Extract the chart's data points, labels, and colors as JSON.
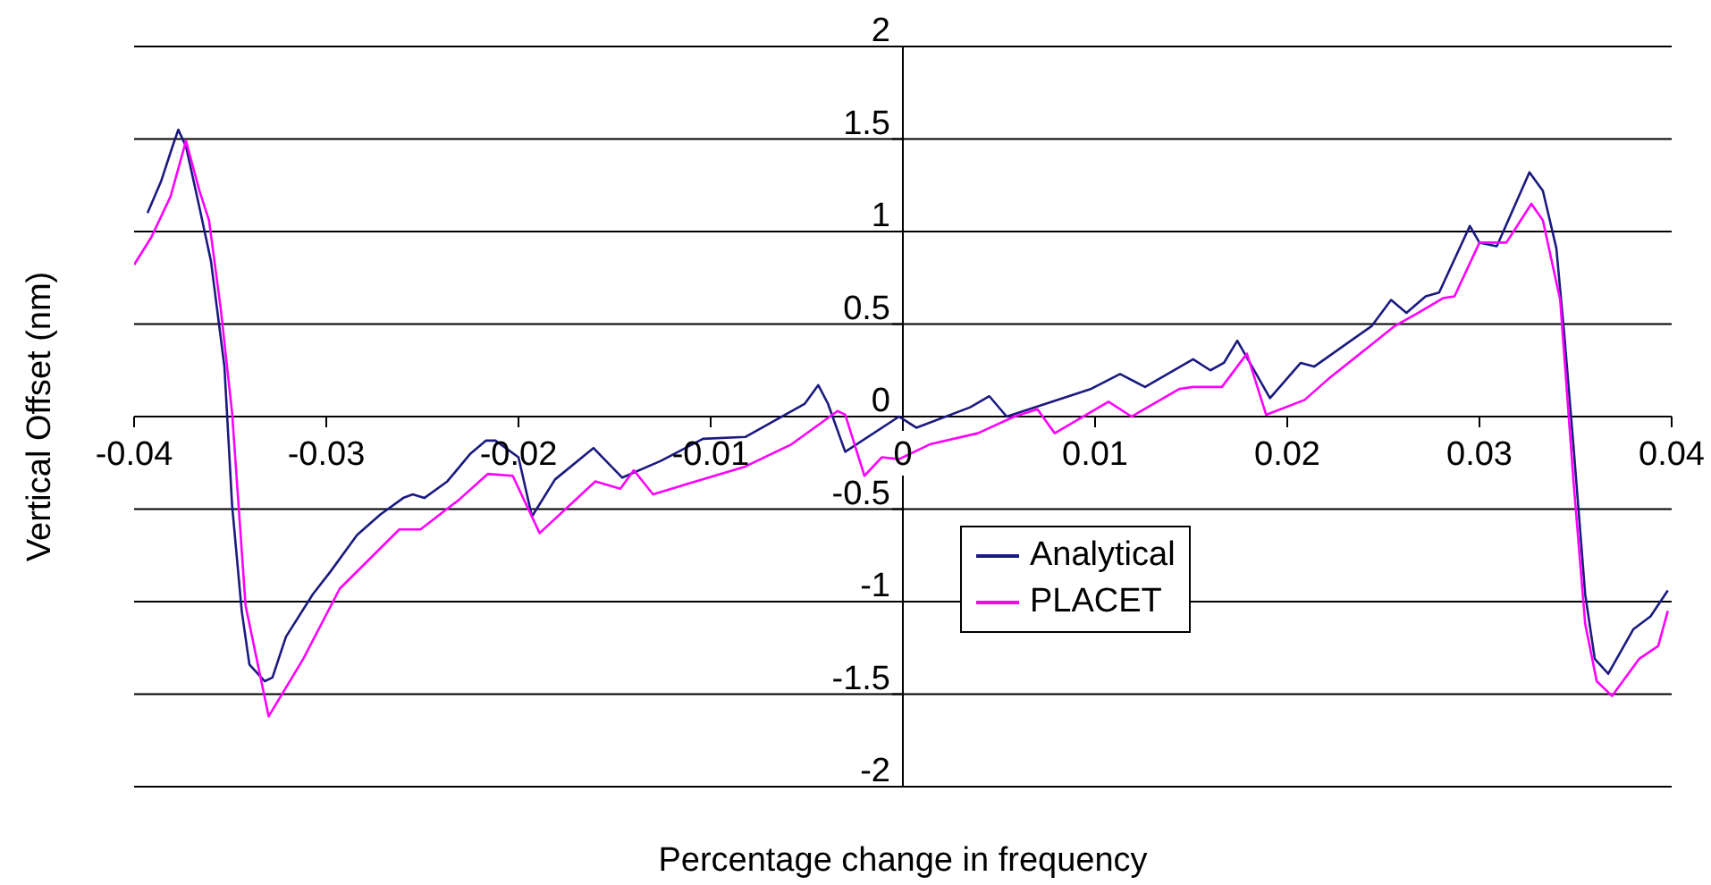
{
  "chart_data": {
    "type": "line",
    "xlabel": "Percentage change in frequency",
    "ylabel": "Vertical Offset (nm)",
    "xlim": [
      -0.04,
      0.04
    ],
    "xticks": [
      -0.04,
      -0.03,
      -0.02,
      -0.01,
      0,
      0.01,
      0.02,
      0.03,
      0.04
    ],
    "ylim": [
      -2,
      2
    ],
    "yticks": [
      -2,
      -1.5,
      -1,
      -0.5,
      0,
      0.5,
      1,
      1.5,
      2
    ],
    "grid": "y",
    "legend": "center",
    "line_style": "solid",
    "marker": "none",
    "series": [
      {
        "name": "Analytical",
        "color": "#1a1a80",
        "x": [
          -0.0393,
          -0.0386,
          -0.038,
          -0.0377,
          -0.0373,
          -0.0366,
          -0.036,
          -0.0353,
          -0.0349,
          -0.0344,
          -0.034,
          -0.0332,
          -0.0328,
          -0.0321,
          -0.0307,
          -0.0298,
          -0.0284,
          -0.0272,
          -0.026,
          -0.0255,
          -0.0249,
          -0.0237,
          -0.0225,
          -0.0217,
          -0.0212,
          -0.02,
          -0.0193,
          -0.0181,
          -0.0161,
          -0.0146,
          -0.0126,
          -0.0104,
          -0.0082,
          -0.0051,
          -0.0044,
          -0.0039,
          -0.003,
          -0.0002,
          0.0007,
          0.0035,
          0.0045,
          0.0054,
          0.0098,
          0.0113,
          0.0126,
          0.0151,
          0.016,
          0.0167,
          0.0174,
          0.0191,
          0.0207,
          0.0214,
          0.0244,
          0.0254,
          0.0262,
          0.0272,
          0.0279,
          0.0295,
          0.03,
          0.0309,
          0.0326,
          0.0333,
          0.034,
          0.0344,
          0.0349,
          0.0355,
          0.036,
          0.0367,
          0.038,
          0.0389,
          0.0398
        ],
        "values": [
          1.1,
          1.27,
          1.46,
          1.55,
          1.46,
          1.13,
          0.84,
          0.27,
          -0.48,
          -1.05,
          -1.34,
          -1.43,
          -1.41,
          -1.19,
          -0.96,
          -0.84,
          -0.64,
          -0.53,
          -0.44,
          -0.42,
          -0.44,
          -0.35,
          -0.2,
          -0.13,
          -0.13,
          -0.22,
          -0.54,
          -0.34,
          -0.17,
          -0.33,
          -0.24,
          -0.12,
          -0.11,
          0.07,
          0.17,
          0.07,
          -0.19,
          0,
          -0.06,
          0.05,
          0.11,
          0,
          0.15,
          0.23,
          0.16,
          0.31,
          0.25,
          0.29,
          0.41,
          0.1,
          0.29,
          0.27,
          0.49,
          0.63,
          0.56,
          0.65,
          0.67,
          1.03,
          0.94,
          0.92,
          1.32,
          1.22,
          0.91,
          0.46,
          -0.17,
          -0.96,
          -1.31,
          -1.39,
          -1.15,
          -1.08,
          -0.94
        ]
      },
      {
        "name": "PLACET",
        "color": "#ff00ff",
        "x": [
          -0.04,
          -0.0391,
          -0.0381,
          -0.0373,
          -0.0366,
          -0.0361,
          -0.0355,
          -0.0349,
          -0.0342,
          -0.033,
          -0.0312,
          -0.0293,
          -0.0262,
          -0.0251,
          -0.0231,
          -0.0216,
          -0.0203,
          -0.0189,
          -0.016,
          -0.0147,
          -0.014,
          -0.013,
          -0.0082,
          -0.0058,
          -0.0042,
          -0.0034,
          -0.003,
          -0.002,
          -0.0011,
          -0.0002,
          0.0014,
          0.0039,
          0.0058,
          0.007,
          0.0079,
          0.0107,
          0.0119,
          0.0144,
          0.0151,
          0.0166,
          0.0179,
          0.0189,
          0.0209,
          0.0221,
          0.0256,
          0.0268,
          0.0281,
          0.0287,
          0.03,
          0.0314,
          0.0327,
          0.0333,
          0.0342,
          0.0349,
          0.0355,
          0.0361,
          0.0369,
          0.0383,
          0.0393,
          0.0398
        ],
        "values": [
          0.82,
          0.97,
          1.19,
          1.49,
          1.22,
          1.06,
          0.59,
          0.02,
          -1.02,
          -1.62,
          -1.31,
          -0.93,
          -0.61,
          -0.61,
          -0.45,
          -0.31,
          -0.32,
          -0.63,
          -0.35,
          -0.39,
          -0.29,
          -0.42,
          -0.27,
          -0.15,
          -0.03,
          0.03,
          0.01,
          -0.32,
          -0.22,
          -0.23,
          -0.15,
          -0.09,
          0,
          0.04,
          -0.09,
          0.08,
          0,
          0.15,
          0.16,
          0.16,
          0.34,
          0.01,
          0.09,
          0.2,
          0.49,
          0.56,
          0.64,
          0.65,
          0.94,
          0.94,
          1.15,
          1.06,
          0.63,
          -0.36,
          -1.12,
          -1.43,
          -1.51,
          -1.31,
          -1.24,
          -1.05
        ]
      }
    ]
  }
}
